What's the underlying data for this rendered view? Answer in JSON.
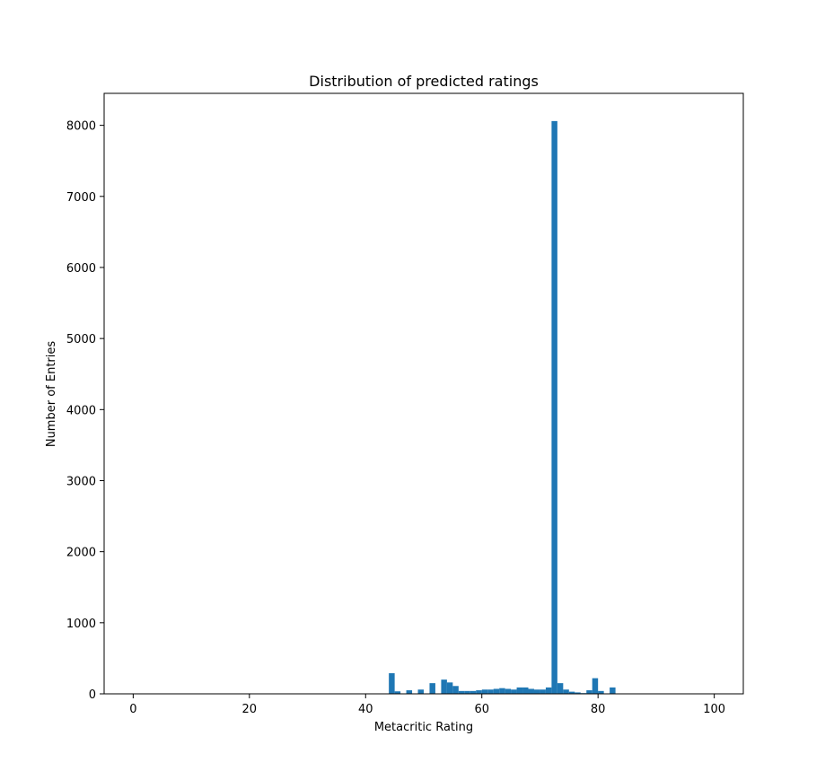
{
  "chart_data": {
    "type": "bar",
    "title": "Distribution of predicted ratings",
    "xlabel": "Metacritic Rating",
    "ylabel": "Number of Entries",
    "xlim": [
      -5,
      105
    ],
    "ylim": [
      0,
      8450
    ],
    "x_ticks": [
      0,
      20,
      40,
      60,
      80,
      100
    ],
    "y_ticks": [
      0,
      1000,
      2000,
      3000,
      4000,
      5000,
      6000,
      7000,
      8000
    ],
    "grid": false,
    "bar_color": "#1f77b4",
    "bin_width": 1,
    "bins": [
      {
        "x": 44,
        "value": 290
      },
      {
        "x": 45,
        "value": 35
      },
      {
        "x": 47,
        "value": 50
      },
      {
        "x": 49,
        "value": 60
      },
      {
        "x": 51,
        "value": 150
      },
      {
        "x": 53,
        "value": 200
      },
      {
        "x": 54,
        "value": 160
      },
      {
        "x": 55,
        "value": 110
      },
      {
        "x": 56,
        "value": 40
      },
      {
        "x": 57,
        "value": 40
      },
      {
        "x": 58,
        "value": 40
      },
      {
        "x": 59,
        "value": 50
      },
      {
        "x": 60,
        "value": 60
      },
      {
        "x": 61,
        "value": 60
      },
      {
        "x": 62,
        "value": 70
      },
      {
        "x": 63,
        "value": 80
      },
      {
        "x": 64,
        "value": 70
      },
      {
        "x": 65,
        "value": 60
      },
      {
        "x": 66,
        "value": 90
      },
      {
        "x": 67,
        "value": 90
      },
      {
        "x": 68,
        "value": 70
      },
      {
        "x": 69,
        "value": 60
      },
      {
        "x": 70,
        "value": 60
      },
      {
        "x": 71,
        "value": 90
      },
      {
        "x": 72,
        "value": 8060
      },
      {
        "x": 73,
        "value": 150
      },
      {
        "x": 74,
        "value": 60
      },
      {
        "x": 75,
        "value": 30
      },
      {
        "x": 76,
        "value": 20
      },
      {
        "x": 77,
        "value": 10
      },
      {
        "x": 78,
        "value": 50
      },
      {
        "x": 79,
        "value": 220
      },
      {
        "x": 80,
        "value": 40
      },
      {
        "x": 82,
        "value": 90
      }
    ]
  }
}
